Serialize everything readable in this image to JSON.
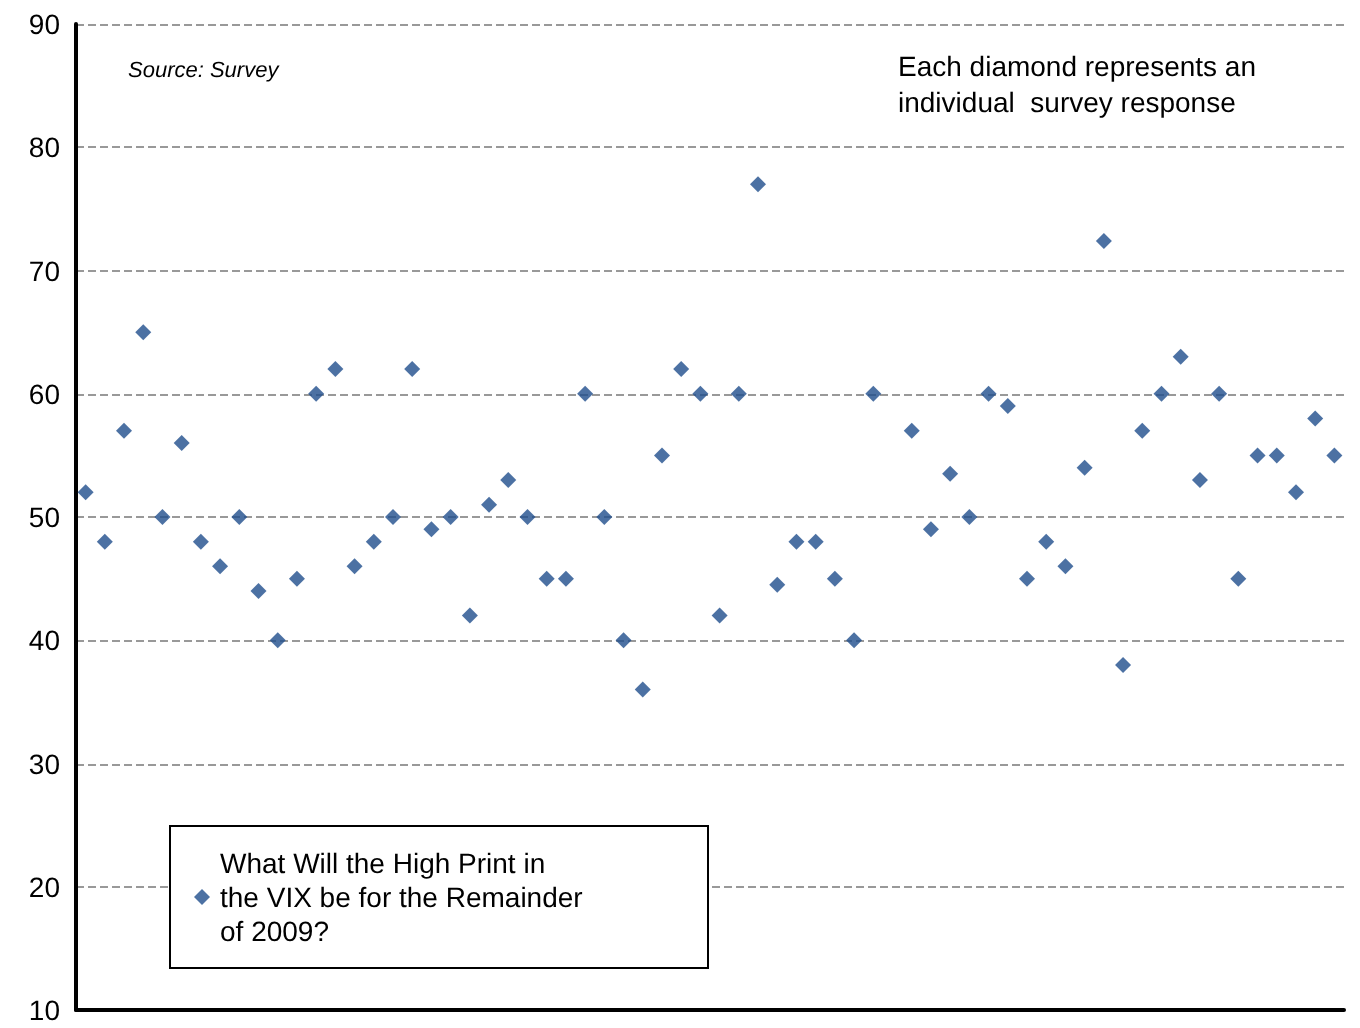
{
  "chart_data": {
    "type": "scatter",
    "categories": [
      null,
      null,
      null,
      null,
      null,
      null,
      null,
      null,
      null,
      null,
      null,
      null,
      null,
      null,
      null,
      null,
      null,
      null,
      null,
      null,
      null,
      null,
      null,
      null,
      null,
      null,
      null,
      null,
      null,
      null,
      null,
      null,
      null,
      null,
      null,
      null,
      null,
      null,
      null,
      null,
      null,
      null,
      null,
      null,
      null,
      null,
      null,
      null,
      null,
      null,
      null,
      null,
      null,
      null,
      null,
      null,
      null,
      null,
      null,
      null,
      null,
      null,
      null,
      null,
      null,
      null
    ],
    "series": [
      {
        "name": "What Will the High Print in the VIX be for the Remainder of 2009?",
        "color": "#1f4e8c",
        "values": [
          52,
          48,
          57,
          65,
          50,
          56,
          48,
          46,
          50,
          44,
          40,
          45,
          60,
          62,
          46,
          48,
          50,
          62,
          49,
          50,
          42,
          51,
          53,
          50,
          45,
          45,
          60,
          50,
          40,
          36,
          55,
          62,
          60,
          42,
          60,
          77,
          44.5,
          48,
          48,
          45,
          40,
          60,
          null,
          57,
          49,
          53.5,
          50,
          60,
          59,
          45,
          48,
          46,
          54,
          72.4,
          38,
          57,
          60,
          63,
          53,
          60,
          45,
          55,
          55,
          52,
          58,
          55
        ]
      }
    ],
    "ylim": [
      10,
      90
    ],
    "yticks": [
      10,
      20,
      30,
      40,
      50,
      60,
      70,
      80,
      90
    ],
    "grid": "y",
    "tick_labels": "y",
    "marker": "diamond",
    "legend": "bottom left",
    "annotations": [
      "Source: Survey",
      "Each diamond represents an individual  survey response"
    ]
  }
}
